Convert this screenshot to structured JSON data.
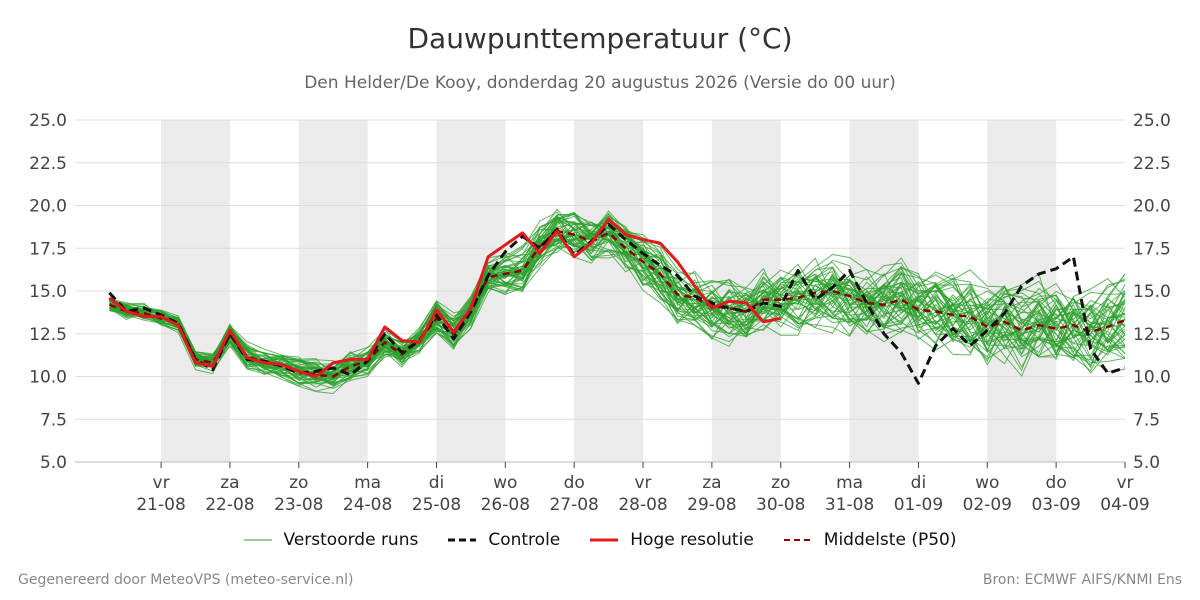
{
  "title": "Dauwpunttemperatuur (°C)",
  "subtitle": "Den Helder/De Kooy, donderdag 20 augustus 2026 (Versie do 00 uur)",
  "footer": {
    "left": "Gegenereerd door MeteoVPS (meteo-service.nl)",
    "right": "Bron: ECMWF AIFS/KNMI Ens"
  },
  "colors": {
    "ensemble": "#2ca02c",
    "control": "#111111",
    "hires": "#e31a1c",
    "median": "#8b0000",
    "shade": "#ebebeb",
    "grid": "#dddddd"
  },
  "legend": [
    {
      "key": "ensemble",
      "label": "Verstoorde runs",
      "style": "thin-solid"
    },
    {
      "key": "control",
      "label": "Controle",
      "style": "dashed"
    },
    {
      "key": "hires",
      "label": "Hoge resolutie",
      "style": "thick-solid"
    },
    {
      "key": "median",
      "label": "Middelste (P50)",
      "style": "dashed"
    }
  ],
  "chart_data": {
    "type": "line",
    "title": "Dauwpunttemperatuur (°C)",
    "ylim": [
      5.0,
      25.0
    ],
    "yticks": [
      "5.0",
      "7.5",
      "10.0",
      "12.5",
      "15.0",
      "17.5",
      "20.0",
      "22.5",
      "25.0"
    ],
    "xlim_days": [
      -1.25,
      14.0
    ],
    "xticks": [
      {
        "day": "vr",
        "date": "21-08",
        "pos": 0
      },
      {
        "day": "za",
        "date": "22-08",
        "pos": 1
      },
      {
        "day": "zo",
        "date": "23-08",
        "pos": 2
      },
      {
        "day": "ma",
        "date": "24-08",
        "pos": 3
      },
      {
        "day": "di",
        "date": "25-08",
        "pos": 4
      },
      {
        "day": "wo",
        "date": "26-08",
        "pos": 5
      },
      {
        "day": "do",
        "date": "27-08",
        "pos": 6
      },
      {
        "day": "vr",
        "date": "28-08",
        "pos": 7
      },
      {
        "day": "za",
        "date": "29-08",
        "pos": 8
      },
      {
        "day": "zo",
        "date": "30-08",
        "pos": 9
      },
      {
        "day": "ma",
        "date": "31-08",
        "pos": 10
      },
      {
        "day": "di",
        "date": "01-09",
        "pos": 11
      },
      {
        "day": "wo",
        "date": "02-09",
        "pos": 12
      },
      {
        "day": "do",
        "date": "03-09",
        "pos": 13
      },
      {
        "day": "vr",
        "date": "04-09",
        "pos": 14
      }
    ],
    "shaded_days": [
      [
        0,
        1
      ],
      [
        2,
        3
      ],
      [
        4,
        5
      ],
      [
        6,
        7
      ],
      [
        8,
        9
      ],
      [
        10,
        11
      ],
      [
        12,
        13
      ]
    ],
    "grid": true,
    "legend_position": "bottom",
    "series": [
      {
        "name": "Hoge resolutie",
        "style": "solid-thick",
        "color": "#e31a1c",
        "x": [
          -0.75,
          -0.5,
          -0.25,
          0,
          0.25,
          0.5,
          0.75,
          1,
          1.25,
          1.5,
          1.75,
          2,
          2.25,
          2.5,
          2.75,
          3,
          3.25,
          3.5,
          3.75,
          4,
          4.25,
          4.5,
          4.75,
          5,
          5.25,
          5.5,
          5.75,
          6,
          6.25,
          6.5,
          6.75,
          7,
          7.25,
          7.5,
          7.75,
          8,
          8.25,
          8.5,
          8.75,
          9
        ],
        "y": [
          14.6,
          13.8,
          13.5,
          13.5,
          13.0,
          10.8,
          10.6,
          12.7,
          11.1,
          10.8,
          10.7,
          10.3,
          10.0,
          10.8,
          11.0,
          11.0,
          12.9,
          12.1,
          12.0,
          13.9,
          12.6,
          14.0,
          17.0,
          17.7,
          18.4,
          17.2,
          18.5,
          17.0,
          17.8,
          19.2,
          18.3,
          18.0,
          17.8,
          16.7,
          15.3,
          14.0,
          14.4,
          14.3,
          13.2,
          13.4
        ]
      },
      {
        "name": "Controle",
        "style": "dashed",
        "color": "#111111",
        "x": [
          -0.75,
          -0.5,
          -0.25,
          0,
          0.25,
          0.5,
          0.75,
          1,
          1.25,
          1.5,
          1.75,
          2,
          2.25,
          2.5,
          2.75,
          3,
          3.25,
          3.5,
          3.75,
          4,
          4.25,
          4.5,
          4.75,
          5,
          5.25,
          5.5,
          5.75,
          6,
          6.25,
          6.5,
          6.75,
          7,
          7.25,
          7.5,
          7.75,
          8,
          8.25,
          8.5,
          8.75,
          9,
          9.25,
          9.5,
          9.75,
          10,
          10.25,
          10.5,
          10.75,
          11,
          11.25,
          11.5,
          11.75,
          12,
          12.25,
          12.5,
          12.75,
          13,
          13.25,
          13.5,
          13.75,
          14
        ],
        "y": [
          14.9,
          13.8,
          14.0,
          13.6,
          13.1,
          11.0,
          10.4,
          12.5,
          11.0,
          10.9,
          10.6,
          10.2,
          10.3,
          10.5,
          10.1,
          10.9,
          12.5,
          11.4,
          12.1,
          13.6,
          12.2,
          13.8,
          15.9,
          17.3,
          18.2,
          17.5,
          18.6,
          17.1,
          17.9,
          18.9,
          18.0,
          17.2,
          16.5,
          15.9,
          14.7,
          14.3,
          14.0,
          13.8,
          14.3,
          14.1,
          16.2,
          14.5,
          15.2,
          16.2,
          14.3,
          12.5,
          11.4,
          9.6,
          11.8,
          12.8,
          11.8,
          12.7,
          13.7,
          15.3,
          16.0,
          16.3,
          17.0,
          11.6,
          10.2,
          10.5
        ]
      },
      {
        "name": "Middelste (P50)",
        "style": "dashed",
        "color": "#8b0000",
        "x": [
          -0.75,
          -0.5,
          -0.25,
          0,
          0.25,
          0.5,
          0.75,
          1,
          1.25,
          1.5,
          1.75,
          2,
          2.25,
          2.5,
          2.75,
          3,
          3.25,
          3.5,
          3.75,
          4,
          4.25,
          4.5,
          4.75,
          5,
          5.25,
          5.5,
          5.75,
          6,
          6.25,
          6.5,
          6.75,
          7,
          7.25,
          7.5,
          7.75,
          8,
          8.25,
          8.5,
          8.75,
          9,
          9.25,
          9.5,
          9.75,
          10,
          10.25,
          10.5,
          10.75,
          11,
          11.25,
          11.5,
          11.75,
          12,
          12.25,
          12.5,
          12.75,
          13,
          13.25,
          13.5,
          13.75,
          14
        ],
        "y": [
          14.2,
          13.8,
          13.7,
          13.4,
          13.1,
          11.0,
          10.8,
          12.4,
          11.2,
          10.8,
          10.6,
          10.3,
          10.1,
          10.0,
          10.6,
          10.9,
          12.0,
          11.3,
          12.1,
          13.4,
          12.5,
          13.8,
          15.8,
          16.0,
          16.2,
          17.6,
          18.5,
          18.3,
          17.9,
          18.4,
          17.5,
          16.7,
          16.0,
          14.8,
          14.6,
          14.1,
          14.0,
          13.8,
          14.5,
          14.5,
          14.6,
          14.9,
          15.0,
          14.7,
          14.3,
          14.2,
          14.5,
          13.9,
          13.8,
          13.6,
          13.5,
          12.9,
          13.2,
          12.7,
          13.0,
          12.8,
          13.0,
          12.6,
          12.9,
          13.3
        ]
      }
    ],
    "ensemble": {
      "name": "Verstoorde runs",
      "color": "#2ca02c",
      "members": 50,
      "x_start": -0.75,
      "x_step": 0.25,
      "x_end": 14.0,
      "note_range_mean": "spread around median",
      "spread_by_day": [
        0.6,
        0.6,
        0.9,
        1.0,
        1.0,
        1.2,
        1.5,
        1.8,
        2.0,
        2.2,
        2.4,
        2.6,
        2.8,
        3.0,
        3.0,
        3.0
      ]
    }
  }
}
